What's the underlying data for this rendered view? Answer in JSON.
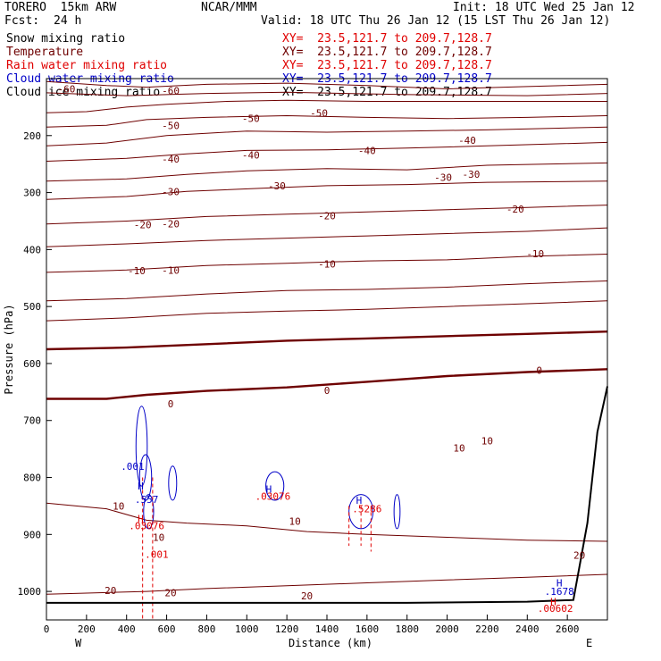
{
  "header": {
    "model": "TORERO  15km ARW",
    "center": "NCAR/MMM",
    "init": "Init: 18 UTC Wed 25 Jan 12",
    "fcst_label": "Fcst:",
    "fcst_value": "24 h",
    "valid": "Valid: 18 UTC Thu 26 Jan 12 (15 LST Thu 26 Jan 12)"
  },
  "legend": [
    {
      "name": "Snow mixing ratio",
      "xy": "",
      "color": "#000000"
    },
    {
      "name": "Temperature",
      "xy": "XY=  23.5,121.7 to 209.7,128.7",
      "color": "#6e0000"
    },
    {
      "name": "Rain water mixing ratio",
      "xy": "XY=  23.5,121.7 to 209.7,128.7",
      "color": "#e00000"
    },
    {
      "name": "Cloud water mixing ratio",
      "xy": "XY=  23.5,121.7 to 209.7,128.7",
      "color": "#0000c8"
    },
    {
      "name": "Cloud ice mixing ratio",
      "xy": "XY=  23.5,121.7 to 209.7,128.7",
      "color": "#000000"
    }
  ],
  "snow_xy": "XY=  23.5,121.7 to 209.7,128.7",
  "chart_data": {
    "type": "line",
    "xlabel": "Distance (km)",
    "ylabel": "Pressure (hPa)",
    "xlim": [
      0,
      2800
    ],
    "ylim": [
      1050,
      100
    ],
    "x_ticks": [
      0,
      200,
      400,
      600,
      800,
      1000,
      1200,
      1400,
      1600,
      1800,
      2000,
      2200,
      2400,
      2600
    ],
    "y_ticks": [
      200,
      300,
      400,
      500,
      600,
      700,
      800,
      900,
      1000
    ],
    "x_end_labels": {
      "left": "W",
      "right": "E"
    },
    "temperature_isotherms": [
      {
        "value": -60,
        "points": [
          [
            0,
            105
          ],
          [
            300,
            112
          ],
          [
            500,
            115
          ],
          [
            800,
            110
          ],
          [
            1200,
            108
          ],
          [
            1600,
            112
          ],
          [
            2000,
            118
          ],
          [
            2400,
            114
          ],
          [
            2800,
            110
          ]
        ]
      },
      {
        "value": -60,
        "points": [
          [
            0,
            125
          ],
          [
            400,
            130
          ],
          [
            800,
            126
          ],
          [
            1200,
            124
          ],
          [
            1800,
            128
          ],
          [
            2400,
            130
          ],
          [
            2800,
            126
          ]
        ]
      },
      {
        "value": -50,
        "points": [
          [
            0,
            160
          ],
          [
            200,
            158
          ],
          [
            400,
            150
          ],
          [
            600,
            145
          ],
          [
            900,
            140
          ],
          [
            1200,
            138
          ],
          [
            1600,
            140
          ],
          [
            2200,
            140
          ],
          [
            2800,
            140
          ]
        ]
      },
      {
        "value": -50,
        "points": [
          [
            0,
            185
          ],
          [
            300,
            182
          ],
          [
            500,
            172
          ],
          [
            800,
            168
          ],
          [
            1200,
            165
          ],
          [
            1600,
            168
          ],
          [
            2000,
            170
          ],
          [
            2400,
            168
          ],
          [
            2800,
            165
          ]
        ]
      },
      {
        "value": -40,
        "points": [
          [
            0,
            218
          ],
          [
            300,
            213
          ],
          [
            600,
            200
          ],
          [
            1000,
            192
          ],
          [
            1400,
            194
          ],
          [
            1800,
            192
          ],
          [
            2200,
            190
          ],
          [
            2800,
            185
          ]
        ]
      },
      {
        "value": -40,
        "points": [
          [
            0,
            245
          ],
          [
            400,
            240
          ],
          [
            700,
            232
          ],
          [
            1000,
            226
          ],
          [
            1400,
            225
          ],
          [
            1800,
            222
          ],
          [
            2200,
            218
          ],
          [
            2800,
            212
          ]
        ]
      },
      {
        "value": -30,
        "points": [
          [
            0,
            280
          ],
          [
            400,
            276
          ],
          [
            700,
            268
          ],
          [
            1000,
            262
          ],
          [
            1400,
            258
          ],
          [
            1800,
            260
          ],
          [
            2200,
            252
          ],
          [
            2800,
            248
          ]
        ]
      },
      {
        "value": -30,
        "points": [
          [
            0,
            312
          ],
          [
            400,
            307
          ],
          [
            700,
            298
          ],
          [
            1100,
            292
          ],
          [
            1400,
            288
          ],
          [
            1800,
            286
          ],
          [
            2200,
            282
          ],
          [
            2800,
            280
          ]
        ]
      },
      {
        "value": -20,
        "points": [
          [
            0,
            355
          ],
          [
            400,
            350
          ],
          [
            800,
            342
          ],
          [
            1200,
            338
          ],
          [
            1600,
            334
          ],
          [
            2000,
            330
          ],
          [
            2400,
            326
          ],
          [
            2800,
            322
          ]
        ]
      },
      {
        "value": -20,
        "points": [
          [
            0,
            395
          ],
          [
            400,
            390
          ],
          [
            800,
            384
          ],
          [
            1200,
            380
          ],
          [
            1600,
            376
          ],
          [
            2000,
            372
          ],
          [
            2400,
            368
          ],
          [
            2800,
            362
          ]
        ]
      },
      {
        "value": -10,
        "points": [
          [
            0,
            440
          ],
          [
            400,
            436
          ],
          [
            800,
            428
          ],
          [
            1200,
            424
          ],
          [
            1600,
            420
          ],
          [
            2000,
            418
          ],
          [
            2400,
            412
          ],
          [
            2800,
            408
          ]
        ]
      },
      {
        "value": -10,
        "points": [
          [
            0,
            490
          ],
          [
            400,
            486
          ],
          [
            800,
            478
          ],
          [
            1200,
            472
          ],
          [
            1600,
            470
          ],
          [
            2000,
            466
          ],
          [
            2400,
            460
          ],
          [
            2800,
            455
          ]
        ]
      },
      {
        "value": -10,
        "points": [
          [
            0,
            525
          ],
          [
            400,
            520
          ],
          [
            800,
            512
          ],
          [
            1200,
            508
          ],
          [
            1600,
            505
          ],
          [
            2000,
            500
          ],
          [
            2400,
            495
          ],
          [
            2800,
            490
          ]
        ]
      },
      {
        "value": 0,
        "points": [
          [
            0,
            575
          ],
          [
            400,
            572
          ],
          [
            800,
            566
          ],
          [
            1200,
            560
          ],
          [
            1600,
            556
          ],
          [
            2000,
            552
          ],
          [
            2400,
            548
          ],
          [
            2800,
            544
          ]
        ]
      },
      {
        "value": 0,
        "points": [
          [
            0,
            662
          ],
          [
            300,
            662
          ],
          [
            500,
            655
          ],
          [
            800,
            648
          ],
          [
            1200,
            642
          ],
          [
            1600,
            632
          ],
          [
            2000,
            622
          ],
          [
            2400,
            615
          ],
          [
            2800,
            610
          ]
        ]
      },
      {
        "value": 10,
        "points": [
          [
            0,
            845
          ],
          [
            300,
            855
          ],
          [
            500,
            875
          ],
          [
            700,
            880
          ],
          [
            1000,
            885
          ],
          [
            1300,
            895
          ],
          [
            1600,
            900
          ],
          [
            2000,
            905
          ],
          [
            2400,
            910
          ],
          [
            2800,
            912
          ]
        ]
      },
      {
        "value": 20,
        "points": [
          [
            0,
            1005
          ],
          [
            300,
            1002
          ],
          [
            500,
            1000
          ],
          [
            800,
            995
          ],
          [
            1200,
            990
          ],
          [
            1600,
            985
          ],
          [
            2000,
            980
          ],
          [
            2400,
            975
          ],
          [
            2800,
            970
          ]
        ]
      }
    ],
    "contour_labels": [
      {
        "text": "-60",
        "x": 100,
        "p": 118,
        "color": "#6e0000"
      },
      {
        "text": "-60",
        "x": 620,
        "p": 121,
        "color": "#6e0000"
      },
      {
        "text": "-50",
        "x": 1020,
        "p": 170,
        "color": "#6e0000"
      },
      {
        "text": "-50",
        "x": 1360,
        "p": 160,
        "color": "#6e0000"
      },
      {
        "text": "-50",
        "x": 620,
        "p": 182,
        "color": "#6e0000"
      },
      {
        "text": "-40",
        "x": 620,
        "p": 241,
        "color": "#6e0000"
      },
      {
        "text": "-40",
        "x": 1020,
        "p": 234,
        "color": "#6e0000"
      },
      {
        "text": "-40",
        "x": 1600,
        "p": 226,
        "color": "#6e0000"
      },
      {
        "text": "-40",
        "x": 2100,
        "p": 208,
        "color": "#6e0000"
      },
      {
        "text": "-30",
        "x": 620,
        "p": 298,
        "color": "#6e0000"
      },
      {
        "text": "-30",
        "x": 1150,
        "p": 288,
        "color": "#6e0000"
      },
      {
        "text": "-30",
        "x": 1980,
        "p": 273,
        "color": "#6e0000"
      },
      {
        "text": "-30",
        "x": 2120,
        "p": 268,
        "color": "#6e0000"
      },
      {
        "text": "-20",
        "x": 480,
        "p": 356,
        "color": "#6e0000"
      },
      {
        "text": "-20",
        "x": 620,
        "p": 355,
        "color": "#6e0000"
      },
      {
        "text": "-20",
        "x": 1400,
        "p": 341,
        "color": "#6e0000"
      },
      {
        "text": "-20",
        "x": 2340,
        "p": 329,
        "color": "#6e0000"
      },
      {
        "text": "-10",
        "x": 450,
        "p": 437,
        "color": "#6e0000"
      },
      {
        "text": "-10",
        "x": 620,
        "p": 436,
        "color": "#6e0000"
      },
      {
        "text": "-10",
        "x": 1400,
        "p": 425,
        "color": "#6e0000"
      },
      {
        "text": "-10",
        "x": 2440,
        "p": 407,
        "color": "#6e0000"
      },
      {
        "text": "0",
        "x": 620,
        "p": 671,
        "color": "#6e0000"
      },
      {
        "text": "0",
        "x": 1400,
        "p": 647,
        "color": "#6e0000"
      },
      {
        "text": "0",
        "x": 2460,
        "p": 612,
        "color": "#6e0000"
      },
      {
        "text": "10",
        "x": 360,
        "p": 850,
        "color": "#6e0000"
      },
      {
        "text": "10",
        "x": 560,
        "p": 905,
        "color": "#6e0000"
      },
      {
        "text": "10",
        "x": 1240,
        "p": 877,
        "color": "#6e0000"
      },
      {
        "text": "10",
        "x": 2060,
        "p": 748,
        "color": "#6e0000"
      },
      {
        "text": "10",
        "x": 2200,
        "p": 736,
        "color": "#6e0000"
      },
      {
        "text": "20",
        "x": 320,
        "p": 998,
        "color": "#6e0000"
      },
      {
        "text": "20",
        "x": 620,
        "p": 1002,
        "color": "#6e0000"
      },
      {
        "text": "20",
        "x": 2660,
        "p": 936,
        "color": "#6e0000"
      },
      {
        "text": "20",
        "x": 1300,
        "p": 1008,
        "color": "#6e0000"
      },
      {
        "text": ".001",
        "x": 430,
        "p": 780,
        "color": "#0000c8"
      },
      {
        "text": ".557",
        "x": 500,
        "p": 838,
        "color": "#0000c8"
      },
      {
        "text": ".03076",
        "x": 500,
        "p": 885,
        "color": "#e00000"
      },
      {
        "text": ".001",
        "x": 550,
        "p": 935,
        "color": "#e00000"
      },
      {
        "text": ".03076",
        "x": 1130,
        "p": 833,
        "color": "#e00000"
      },
      {
        "text": ".5286",
        "x": 1600,
        "p": 855,
        "color": "#e00000"
      },
      {
        "text": ".1678",
        "x": 2560,
        "p": 1000,
        "color": "#0000c8"
      },
      {
        "text": ".00602",
        "x": 2540,
        "p": 1030,
        "color": "#e00000"
      }
    ],
    "maxima_markers": [
      {
        "text": "H",
        "x": 470,
        "p": 815,
        "color": "#0000c8"
      },
      {
        "text": "H",
        "x": 470,
        "p": 872,
        "color": "#e00000"
      },
      {
        "text": "H",
        "x": 1110,
        "p": 820,
        "color": "#0000c8"
      },
      {
        "text": "H",
        "x": 1560,
        "p": 840,
        "color": "#0000c8"
      },
      {
        "text": "H",
        "x": 2560,
        "p": 985,
        "color": "#0000c8"
      },
      {
        "text": "H",
        "x": 2530,
        "p": 1018,
        "color": "#e00000"
      }
    ],
    "cloud_water_contours": [
      {
        "cx": 475,
        "cp": 745,
        "rx": 28,
        "rp": 70
      },
      {
        "cx": 495,
        "cp": 800,
        "rx": 30,
        "rp": 40
      },
      {
        "cx": 510,
        "cp": 860,
        "rx": 25,
        "rp": 30
      },
      {
        "cx": 630,
        "cp": 810,
        "rx": 20,
        "rp": 30
      },
      {
        "cx": 1140,
        "cp": 815,
        "rx": 45,
        "rp": 25
      },
      {
        "cx": 1570,
        "cp": 860,
        "rx": 60,
        "rp": 30
      },
      {
        "cx": 1750,
        "cp": 860,
        "rx": 15,
        "rp": 30
      }
    ],
    "rain_water_contours": [
      {
        "x1": 480,
        "p1": 800,
        "x2": 480,
        "p2": 1050
      },
      {
        "x1": 530,
        "p1": 800,
        "x2": 530,
        "p2": 1050
      },
      {
        "x1": 1510,
        "p1": 850,
        "x2": 1510,
        "p2": 920
      },
      {
        "x1": 1570,
        "p1": 850,
        "x2": 1570,
        "p2": 920
      },
      {
        "x1": 1620,
        "p1": 850,
        "x2": 1620,
        "p2": 930
      }
    ],
    "terrain": [
      [
        0,
        1020
      ],
      [
        600,
        1020
      ],
      [
        1200,
        1020
      ],
      [
        1800,
        1020
      ],
      [
        2400,
        1018
      ],
      [
        2630,
        1015
      ],
      [
        2700,
        880
      ],
      [
        2750,
        720
      ],
      [
        2800,
        640
      ]
    ]
  }
}
